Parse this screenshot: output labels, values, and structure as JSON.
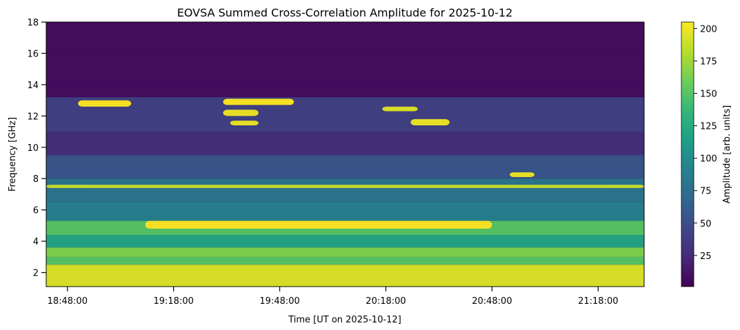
{
  "chart_data": {
    "type": "heatmap",
    "title": "EOVSA Summed Cross-Correlation Amplitude for 2025-10-12",
    "xlabel": "Time [UT on 2025-10-12]",
    "ylabel": "Frequency [GHz]",
    "colorbar_label": "Amplitude [arb. units]",
    "colormap": "viridis",
    "x_range": [
      "18:42:00",
      "21:31:00"
    ],
    "x_ticks": [
      "18:48:00",
      "19:18:00",
      "19:48:00",
      "20:18:00",
      "20:48:00",
      "21:18:00"
    ],
    "ylim": [
      1.1,
      18.0
    ],
    "y_ticks": [
      2,
      4,
      6,
      8,
      10,
      12,
      14,
      16,
      18
    ],
    "clim": [
      1,
      205
    ],
    "colorbar_ticks": [
      25,
      50,
      75,
      100,
      125,
      150,
      175,
      200
    ],
    "bands": [
      {
        "freq": [
          1.1,
          2.5
        ],
        "level": 195
      },
      {
        "freq": [
          2.5,
          3.0
        ],
        "level": 150
      },
      {
        "freq": [
          3.0,
          3.6
        ],
        "level": 165
      },
      {
        "freq": [
          3.6,
          4.4
        ],
        "level": 120
      },
      {
        "freq": [
          4.4,
          5.3
        ],
        "level": 150
      },
      {
        "freq": [
          5.3,
          6.5
        ],
        "level": 90
      },
      {
        "freq": [
          6.5,
          8.0
        ],
        "level": 80
      },
      {
        "freq": [
          8.0,
          9.5
        ],
        "level": 55
      },
      {
        "freq": [
          9.5,
          11.0
        ],
        "level": 28
      },
      {
        "freq": [
          11.0,
          13.2
        ],
        "level": 40
      },
      {
        "freq": [
          13.2,
          18.0
        ],
        "level": 8
      }
    ],
    "bursts": [
      {
        "time": [
          "18:51:00",
          "19:06:00"
        ],
        "freq": [
          12.6,
          13.0
        ],
        "level": 205
      },
      {
        "time": [
          "19:32:00",
          "19:52:00"
        ],
        "freq": [
          12.7,
          13.1
        ],
        "level": 205
      },
      {
        "time": [
          "19:32:00",
          "19:42:00"
        ],
        "freq": [
          12.0,
          12.4
        ],
        "level": 200
      },
      {
        "time": [
          "19:34:00",
          "19:42:00"
        ],
        "freq": [
          11.4,
          11.7
        ],
        "level": 200
      },
      {
        "time": [
          "20:17:00",
          "20:27:00"
        ],
        "freq": [
          12.3,
          12.6
        ],
        "level": 195
      },
      {
        "time": [
          "20:25:00",
          "20:36:00"
        ],
        "freq": [
          11.4,
          11.8
        ],
        "level": 200
      },
      {
        "time": [
          "20:53:00",
          "21:00:00"
        ],
        "freq": [
          8.1,
          8.4
        ],
        "level": 200
      },
      {
        "time": [
          "19:10:00",
          "20:48:00"
        ],
        "freq": [
          4.8,
          5.3
        ],
        "level": 205
      },
      {
        "time": [
          "18:42:00",
          "21:31:00"
        ],
        "freq": [
          7.4,
          7.6
        ],
        "level": 190
      }
    ]
  }
}
